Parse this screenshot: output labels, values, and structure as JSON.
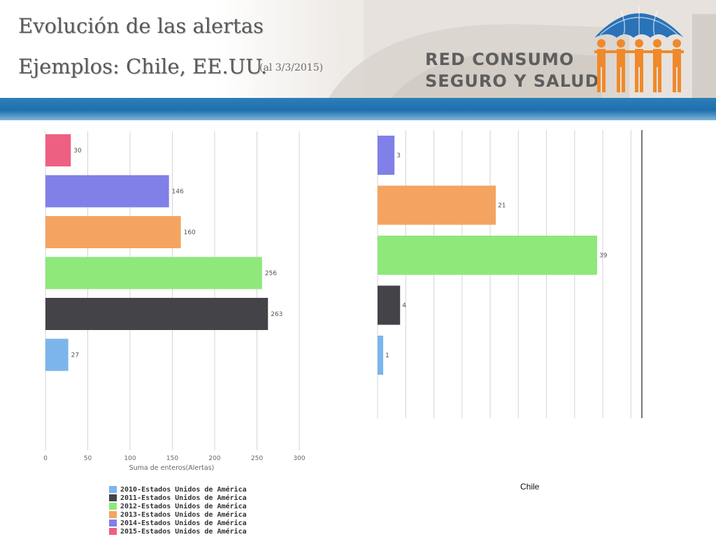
{
  "header": {
    "title_line1": "Evolución de las alertas",
    "title_line2": "Ejemplos: Chile, EE.UU.",
    "subnote": "(al 3/3/2015)",
    "brand_line1": "RED CONSUMO",
    "brand_line2": "SEGURO Y SALUD",
    "logo_icon": "umbrella-people-logo-icon",
    "colors": {
      "brand_orange": "#f0892a",
      "brand_blue": "#2a73b8",
      "band_blue": "#1f6fae"
    }
  },
  "chart_data": [
    {
      "type": "bar",
      "orientation": "horizontal",
      "categories": [
        "2015-Estados Unidos de América",
        "2014-Estados Unidos de América",
        "2013-Estados Unidos de América",
        "2012-Estados Unidos de América",
        "2011-Estados Unidos de América",
        "2010-Estados Unidos de América"
      ],
      "values": [
        30,
        146,
        160,
        256,
        263,
        27
      ],
      "colors": [
        "#ee6082",
        "#8080e8",
        "#f4a460",
        "#8ee87a",
        "#434348",
        "#7cb5ec"
      ],
      "data_labels": [
        "30",
        "146",
        "160",
        "256",
        "263",
        "27"
      ],
      "xlabel": "Suma de enteros(Alertas)",
      "xlim": [
        0,
        300
      ],
      "xticks": [
        "0",
        "50",
        "100",
        "150",
        "200",
        "250",
        "300"
      ],
      "grid": true
    },
    {
      "type": "bar",
      "orientation": "horizontal",
      "categories": [
        "2014",
        "2013",
        "2012",
        "2011",
        "2010"
      ],
      "values": [
        3,
        21,
        39,
        4,
        1
      ],
      "colors": [
        "#8080e8",
        "#f4a460",
        "#8ee87a",
        "#434348",
        "#7cb5ec"
      ],
      "data_labels": [
        "3",
        "21",
        "39",
        "4",
        "1"
      ],
      "xlim": [
        0,
        47
      ],
      "grid": true,
      "title": "Chile"
    }
  ],
  "legend": {
    "items": [
      {
        "label": "2010-Estados Unidos de América",
        "color": "#7cb5ec"
      },
      {
        "label": "2011-Estados Unidos de América",
        "color": "#434348"
      },
      {
        "label": "2012-Estados Unidos de América",
        "color": "#8ee87a"
      },
      {
        "label": "2013-Estados Unidos de América",
        "color": "#f4a460"
      },
      {
        "label": "2014-Estados Unidos de América",
        "color": "#8080e8"
      },
      {
        "label": "2015-Estados Unidos de América",
        "color": "#ee6082"
      }
    ]
  }
}
